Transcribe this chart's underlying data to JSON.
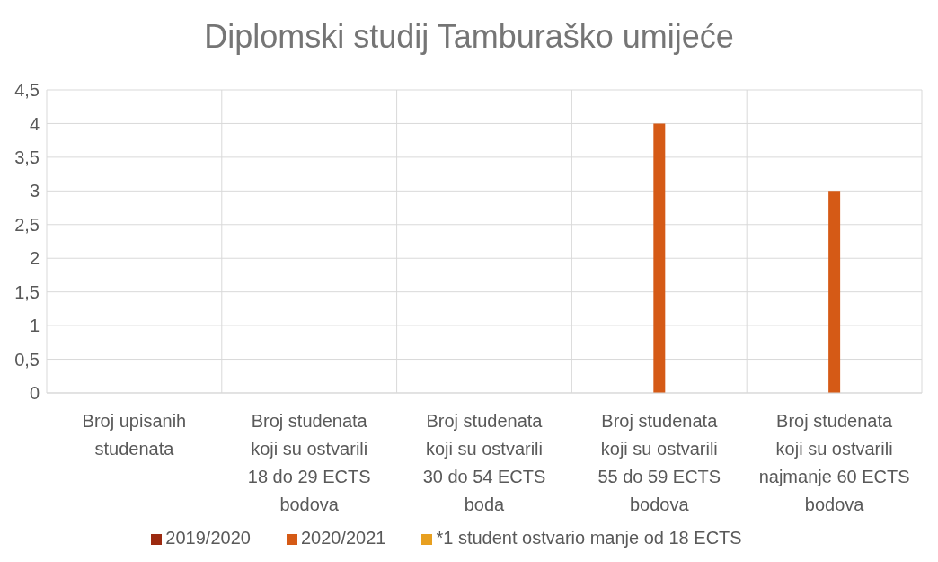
{
  "chart_data": {
    "type": "bar",
    "title": "Diplomski studij Tamburaško umijeće",
    "categories": [
      "Broj upisanih studenata",
      "Broj studenata koji su ostvarili 18 do 29 ECTS bodova",
      "Broj studenata koji su ostvarili 30 do 54 ECTS boda",
      "Broj studenata koji su ostvarili 55 do 59 ECTS bodova",
      "Broj studenata koji su ostvarili najmanje 60 ECTS bodova"
    ],
    "series": [
      {
        "name": "2019/2020",
        "color": "#9c2a10",
        "values": [
          0,
          0,
          0,
          0,
          0
        ]
      },
      {
        "name": "2020/2021",
        "color": "#d55a16",
        "values": [
          0,
          0,
          0,
          4,
          3
        ]
      },
      {
        "name": "*1 student ostvario manje od 18 ECTS",
        "color": "#e8a020",
        "values": [
          0,
          0,
          0,
          0,
          0
        ]
      }
    ],
    "ylim": [
      0,
      4.5
    ],
    "yticks": [
      0,
      {
        "value": 0.5,
        "label": "0,5"
      },
      1,
      {
        "value": 1.5,
        "label": "1,5"
      },
      2,
      {
        "value": 2.5,
        "label": "2,5"
      },
      3,
      {
        "value": 3.5,
        "label": "3,5"
      },
      4,
      {
        "value": 4.5,
        "label": "4,5"
      }
    ],
    "grid": true,
    "legend": "bottom"
  }
}
